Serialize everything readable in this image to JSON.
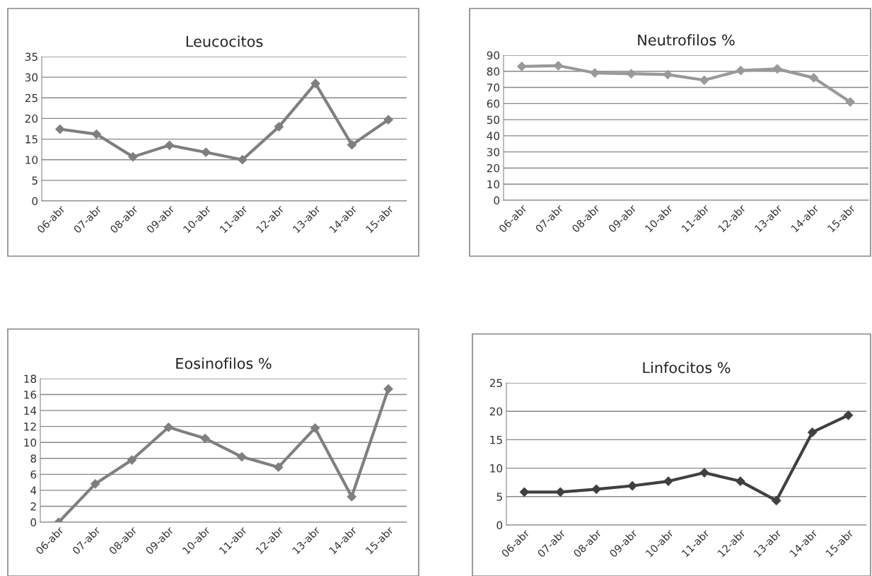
{
  "chart_data": [
    {
      "type": "line",
      "title": "Leucocitos",
      "categories": [
        "06-abr",
        "07-abr",
        "08-abr",
        "09-abr",
        "10-abr",
        "11-abr",
        "12-abr",
        "13-abr",
        "14-abr",
        "15-abr"
      ],
      "series": [
        {
          "color": "#7f7f7f",
          "values": [
            17.4,
            16.2,
            10.7,
            13.5,
            11.8,
            10,
            18,
            28.5,
            13.6,
            19.7
          ]
        }
      ],
      "ylim": [
        0,
        35
      ],
      "yticks": [
        0,
        5,
        10,
        15,
        20,
        25,
        30,
        35
      ],
      "grid": "y",
      "marker": "diamond",
      "line_style": "solid",
      "legend": false
    },
    {
      "type": "line",
      "title": "Neutrofilos %",
      "categories": [
        "06-abr",
        "07-abr",
        "08-abr",
        "09-abr",
        "10-abr",
        "11-abr",
        "12-abr",
        "13-abr",
        "14-abr",
        "15-abr"
      ],
      "series": [
        {
          "color": "#999999",
          "values": [
            83,
            83.5,
            79,
            78.5,
            78,
            74.5,
            80.5,
            81.5,
            76,
            61
          ]
        }
      ],
      "ylim": [
        0,
        90
      ],
      "yticks": [
        0,
        10,
        20,
        30,
        40,
        50,
        60,
        70,
        80,
        90
      ],
      "grid": "y",
      "marker": "diamond",
      "line_style": "solid",
      "legend": false
    },
    {
      "type": "line",
      "title": "Eosinofilos %",
      "categories": [
        "06-abr",
        "07-abr",
        "08-abr",
        "09-abr",
        "10-abr",
        "11-abr",
        "12-abr",
        "13-abr",
        "14-abr",
        "15-abr"
      ],
      "series": [
        {
          "color": "#7f7f7f",
          "values": [
            0,
            4.8,
            7.8,
            11.9,
            10.5,
            8.2,
            6.9,
            11.8,
            3.2,
            16.7
          ]
        }
      ],
      "ylim": [
        0,
        18
      ],
      "yticks": [
        0,
        2,
        4,
        6,
        8,
        10,
        12,
        14,
        16,
        18
      ],
      "grid": "y",
      "marker": "diamond",
      "line_style": "solid",
      "legend": false
    },
    {
      "type": "line",
      "title": "Linfocitos %",
      "categories": [
        "06-abr",
        "07-abr",
        "08-abr",
        "09-abr",
        "10-abr",
        "11-abr",
        "12-abr",
        "13-abr",
        "14-abr",
        "15-abr"
      ],
      "series": [
        {
          "color": "#404040",
          "values": [
            5.8,
            5.8,
            6.3,
            6.9,
            7.7,
            9.2,
            7.7,
            4.3,
            16.3,
            19.3
          ]
        }
      ],
      "ylim": [
        0,
        25
      ],
      "yticks": [
        0,
        5,
        10,
        15,
        20,
        25
      ],
      "grid": "y",
      "marker": "diamond",
      "line_style": "solid",
      "legend": false
    }
  ]
}
